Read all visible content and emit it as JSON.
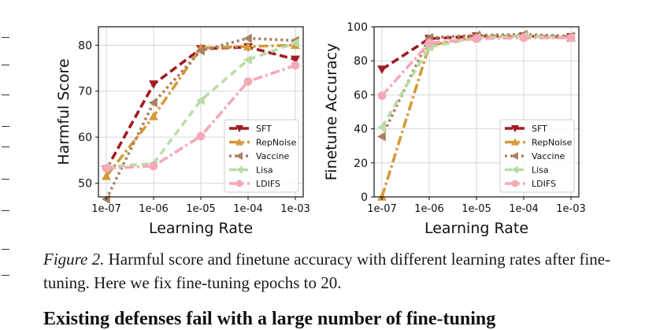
{
  "chart_data": [
    {
      "type": "line",
      "x": [
        "1e-07",
        "1e-06",
        "1e-05",
        "1e-04",
        "1e-03"
      ],
      "xlabel": "Learning Rate",
      "ylabel": "Harmful Score",
      "ylim": [
        47,
        84
      ],
      "yticks": [
        50,
        60,
        70,
        80
      ],
      "grid": true,
      "legend_position": "lower-right",
      "series": [
        {
          "name": "SFT",
          "values": [
            53.0,
            71.5,
            79.2,
            79.6,
            76.9
          ]
        },
        {
          "name": "RepNoise",
          "values": [
            51.5,
            64.5,
            79.4,
            79.7,
            80.0
          ]
        },
        {
          "name": "Vaccine",
          "values": [
            46.5,
            67.5,
            78.8,
            81.5,
            81.0
          ]
        },
        {
          "name": "Lisa",
          "values": [
            53.5,
            54.3,
            68.0,
            76.8,
            80.5
          ]
        },
        {
          "name": "LDIFS",
          "values": [
            53.2,
            53.7,
            60.2,
            72.1,
            75.6
          ]
        }
      ]
    },
    {
      "type": "line",
      "x": [
        "1e-07",
        "1e-06",
        "1e-05",
        "1e-04",
        "1e-03"
      ],
      "xlabel": "Learning Rate",
      "ylabel": "Finetune Accuracy",
      "ylim": [
        0,
        100
      ],
      "yticks": [
        0,
        20,
        40,
        60,
        80,
        100
      ],
      "grid": true,
      "legend_position": "lower-right",
      "series": [
        {
          "name": "SFT",
          "values": [
            75.0,
            93.0,
            94.5,
            94.5,
            94.0
          ]
        },
        {
          "name": "RepNoise",
          "values": [
            0.0,
            89.0,
            94.0,
            94.5,
            93.5
          ]
        },
        {
          "name": "Vaccine",
          "values": [
            35.5,
            93.5,
            95.0,
            95.5,
            94.5
          ]
        },
        {
          "name": "Lisa",
          "values": [
            41.0,
            88.0,
            93.5,
            94.5,
            93.5
          ]
        },
        {
          "name": "LDIFS",
          "values": [
            59.5,
            90.5,
            93.0,
            93.5,
            93.5
          ]
        }
      ]
    }
  ],
  "series_style": [
    {
      "color": "#a01c22",
      "dash": "10,5",
      "marker": "tri-down"
    },
    {
      "color": "#d39a3a",
      "dash": "12,4,3,4",
      "marker": "tri-up"
    },
    {
      "color": "#a98063",
      "dash": "3,4",
      "marker": "tri-left"
    },
    {
      "color": "#b8dca6",
      "dash": "9,6",
      "marker": "tri-left"
    },
    {
      "color": "#f5a9b8",
      "dash": "12,4,3,4",
      "marker": "circle"
    }
  ],
  "caption": {
    "label": "Figure 2.",
    "text": "Harmful score and finetune accuracy with different learning rates after fine-tuning. Here we fix fine-tuning epochs to 20."
  },
  "next_heading": "Existing defenses fail with a large number of fine-tuning"
}
